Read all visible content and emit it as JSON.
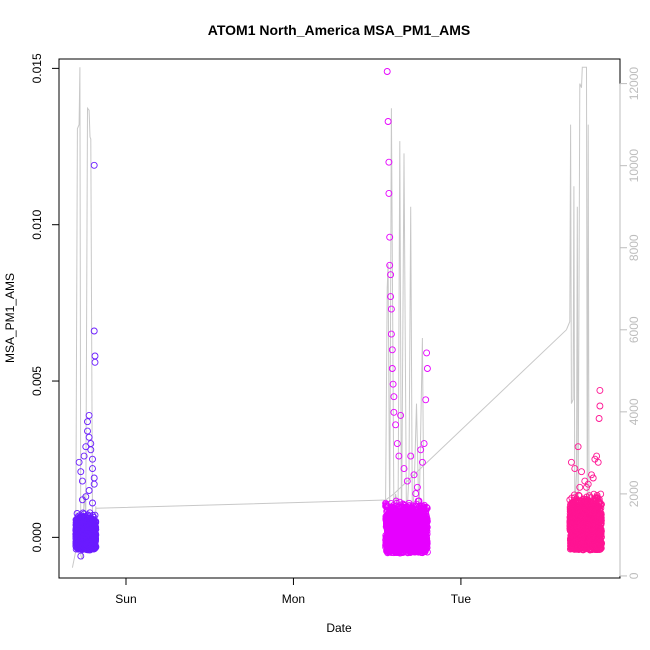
{
  "chart_data": {
    "type": "scatter",
    "title": "ATOM1 North_America MSA_PM1_AMS",
    "xlabel": "Date",
    "ylabel": "MSA_PM1_AMS",
    "x_ticks": [
      {
        "label": "Sun",
        "day": 1.0
      },
      {
        "label": "Mon",
        "day": 2.0
      },
      {
        "label": "Tue",
        "day": 3.0
      }
    ],
    "x_range_days": [
      0.6,
      3.95
    ],
    "ylim": [
      -0.0013,
      0.0153
    ],
    "y_ticks": [
      {
        "value": 0.0,
        "label": "0.000"
      },
      {
        "value": 0.005,
        "label": "0.005"
      },
      {
        "value": 0.01,
        "label": "0.010"
      },
      {
        "value": 0.015,
        "label": "0.015"
      }
    ],
    "y2lim": [
      -50,
      12600
    ],
    "y2_ticks": [
      {
        "value": 0,
        "label": "0"
      },
      {
        "value": 2000,
        "label": "2000"
      },
      {
        "value": 4000,
        "label": "4000"
      },
      {
        "value": 6000,
        "label": "6000"
      },
      {
        "value": 8000,
        "label": "8000"
      },
      {
        "value": 10000,
        "label": "10000"
      },
      {
        "value": 12000,
        "label": "12000"
      }
    ],
    "colors": {
      "segment1": "#6a1bff",
      "segment2": "#e600ff",
      "segment3": "#ff1493",
      "line": "#c8c8c8"
    },
    "segments": [
      {
        "x_start": 0.7,
        "x_end": 0.82,
        "point_count": 700,
        "base_range": [
          -0.0004,
          0.0008
        ],
        "outliers": [
          [
            0.72,
            0.0024
          ],
          [
            0.73,
            0.0021
          ],
          [
            0.74,
            0.0018
          ],
          [
            0.75,
            0.0026
          ],
          [
            0.76,
            0.0029
          ],
          [
            0.77,
            0.0034
          ],
          [
            0.77,
            0.0037
          ],
          [
            0.78,
            0.0039
          ],
          [
            0.78,
            0.0032
          ],
          [
            0.79,
            0.003
          ],
          [
            0.79,
            0.0028
          ],
          [
            0.8,
            0.0025
          ],
          [
            0.8,
            0.0022
          ],
          [
            0.81,
            0.0019
          ],
          [
            0.81,
            0.0017
          ],
          [
            0.76,
            0.0013
          ],
          [
            0.74,
            0.0012
          ],
          [
            0.78,
            0.0015
          ],
          [
            0.8,
            0.0011
          ],
          [
            0.73,
            -0.0006
          ],
          [
            0.81,
            0.0119
          ],
          [
            0.81,
            0.0066
          ],
          [
            0.815,
            0.0058
          ],
          [
            0.815,
            0.0056
          ]
        ],
        "line": [
          [
            0.68,
            200
          ],
          [
            0.7,
            600
          ],
          [
            0.71,
            10900
          ],
          [
            0.72,
            11000
          ],
          [
            0.725,
            12400
          ],
          [
            0.73,
            500
          ],
          [
            0.74,
            400
          ],
          [
            0.75,
            2000
          ],
          [
            0.76,
            1500
          ],
          [
            0.77,
            11400
          ],
          [
            0.78,
            11350
          ],
          [
            0.785,
            10700
          ],
          [
            0.79,
            10650
          ],
          [
            0.8,
            1200
          ],
          [
            0.82,
            1000
          ],
          [
            0.82,
            1700
          ]
        ]
      },
      {
        "x_start": 2.55,
        "x_end": 2.8,
        "point_count": 1400,
        "base_range": [
          -0.0005,
          0.0012
        ],
        "outliers": [
          [
            2.56,
            0.0149
          ],
          [
            2.565,
            0.0133
          ],
          [
            2.57,
            0.012
          ],
          [
            2.57,
            0.011
          ],
          [
            2.575,
            0.0096
          ],
          [
            2.575,
            0.0087
          ],
          [
            2.58,
            0.0084
          ],
          [
            2.58,
            0.0077
          ],
          [
            2.585,
            0.0073
          ],
          [
            2.585,
            0.0065
          ],
          [
            2.59,
            0.006
          ],
          [
            2.59,
            0.0054
          ],
          [
            2.595,
            0.0049
          ],
          [
            2.6,
            0.0045
          ],
          [
            2.6,
            0.004
          ],
          [
            2.61,
            0.0036
          ],
          [
            2.62,
            0.003
          ],
          [
            2.63,
            0.0026
          ],
          [
            2.64,
            0.0039
          ],
          [
            2.66,
            0.0022
          ],
          [
            2.68,
            0.0018
          ],
          [
            2.7,
            0.0026
          ],
          [
            2.72,
            0.002
          ],
          [
            2.74,
            0.0016
          ],
          [
            2.77,
            0.0024
          ],
          [
            2.78,
            0.003
          ],
          [
            2.79,
            0.0044
          ],
          [
            2.795,
            0.0059
          ],
          [
            2.8,
            0.0054
          ],
          [
            2.76,
            0.0028
          ],
          [
            2.73,
            0.0014
          ],
          [
            2.79,
            -0.0004
          ]
        ],
        "line": [
          [
            2.55,
            1850
          ],
          [
            2.56,
            7000
          ],
          [
            2.565,
            7600
          ],
          [
            2.575,
            1200
          ],
          [
            2.585,
            11400
          ],
          [
            2.6,
            1500
          ],
          [
            2.61,
            2000
          ],
          [
            2.625,
            1600
          ],
          [
            2.635,
            10600
          ],
          [
            2.645,
            900
          ],
          [
            2.66,
            10300
          ],
          [
            2.675,
            1200
          ],
          [
            2.69,
            2500
          ],
          [
            2.7,
            9000
          ],
          [
            2.71,
            1500
          ],
          [
            2.72,
            2000
          ],
          [
            2.735,
            4200
          ],
          [
            2.75,
            1300
          ],
          [
            2.77,
            5800
          ],
          [
            2.78,
            900
          ],
          [
            2.8,
            1100
          ]
        ]
      },
      {
        "x_start": 3.65,
        "x_end": 3.84,
        "point_count": 1300,
        "base_range": [
          -0.0004,
          0.0014
        ],
        "outliers": [
          [
            3.66,
            0.0024
          ],
          [
            3.68,
            0.0022
          ],
          [
            3.7,
            0.0029
          ],
          [
            3.72,
            0.0021
          ],
          [
            3.74,
            0.0018
          ],
          [
            3.76,
            0.0017
          ],
          [
            3.78,
            0.002
          ],
          [
            3.8,
            0.0025
          ],
          [
            3.81,
            0.0026
          ],
          [
            3.82,
            0.0024
          ],
          [
            3.83,
            0.0047
          ],
          [
            3.83,
            0.0042
          ],
          [
            3.825,
            0.0038
          ],
          [
            3.79,
            0.0019
          ],
          [
            3.75,
            0.0016
          ],
          [
            3.71,
            0.0016
          ],
          [
            3.69,
            -0.0003
          ],
          [
            3.77,
            -0.0004
          ]
        ],
        "line": [
          [
            3.63,
            6000
          ],
          [
            3.65,
            6200
          ],
          [
            3.655,
            11000
          ],
          [
            3.66,
            4200
          ],
          [
            3.67,
            4300
          ],
          [
            3.675,
            9500
          ],
          [
            3.68,
            1500
          ],
          [
            3.69,
            2500
          ],
          [
            3.695,
            9000
          ],
          [
            3.7,
            1200
          ],
          [
            3.71,
            12000
          ],
          [
            3.72,
            11900
          ],
          [
            3.725,
            12400
          ],
          [
            3.75,
            12400
          ],
          [
            3.755,
            1000
          ],
          [
            3.76,
            11000
          ],
          [
            3.765,
            1500
          ],
          [
            3.78,
            1600
          ],
          [
            3.8,
            2000
          ],
          [
            3.83,
            1800
          ]
        ]
      }
    ],
    "connector_line": [
      [
        0.82,
        1650
      ],
      [
        2.55,
        1850
      ],
      [
        2.6,
        2000
      ],
      [
        3.63,
        6000
      ]
    ]
  }
}
